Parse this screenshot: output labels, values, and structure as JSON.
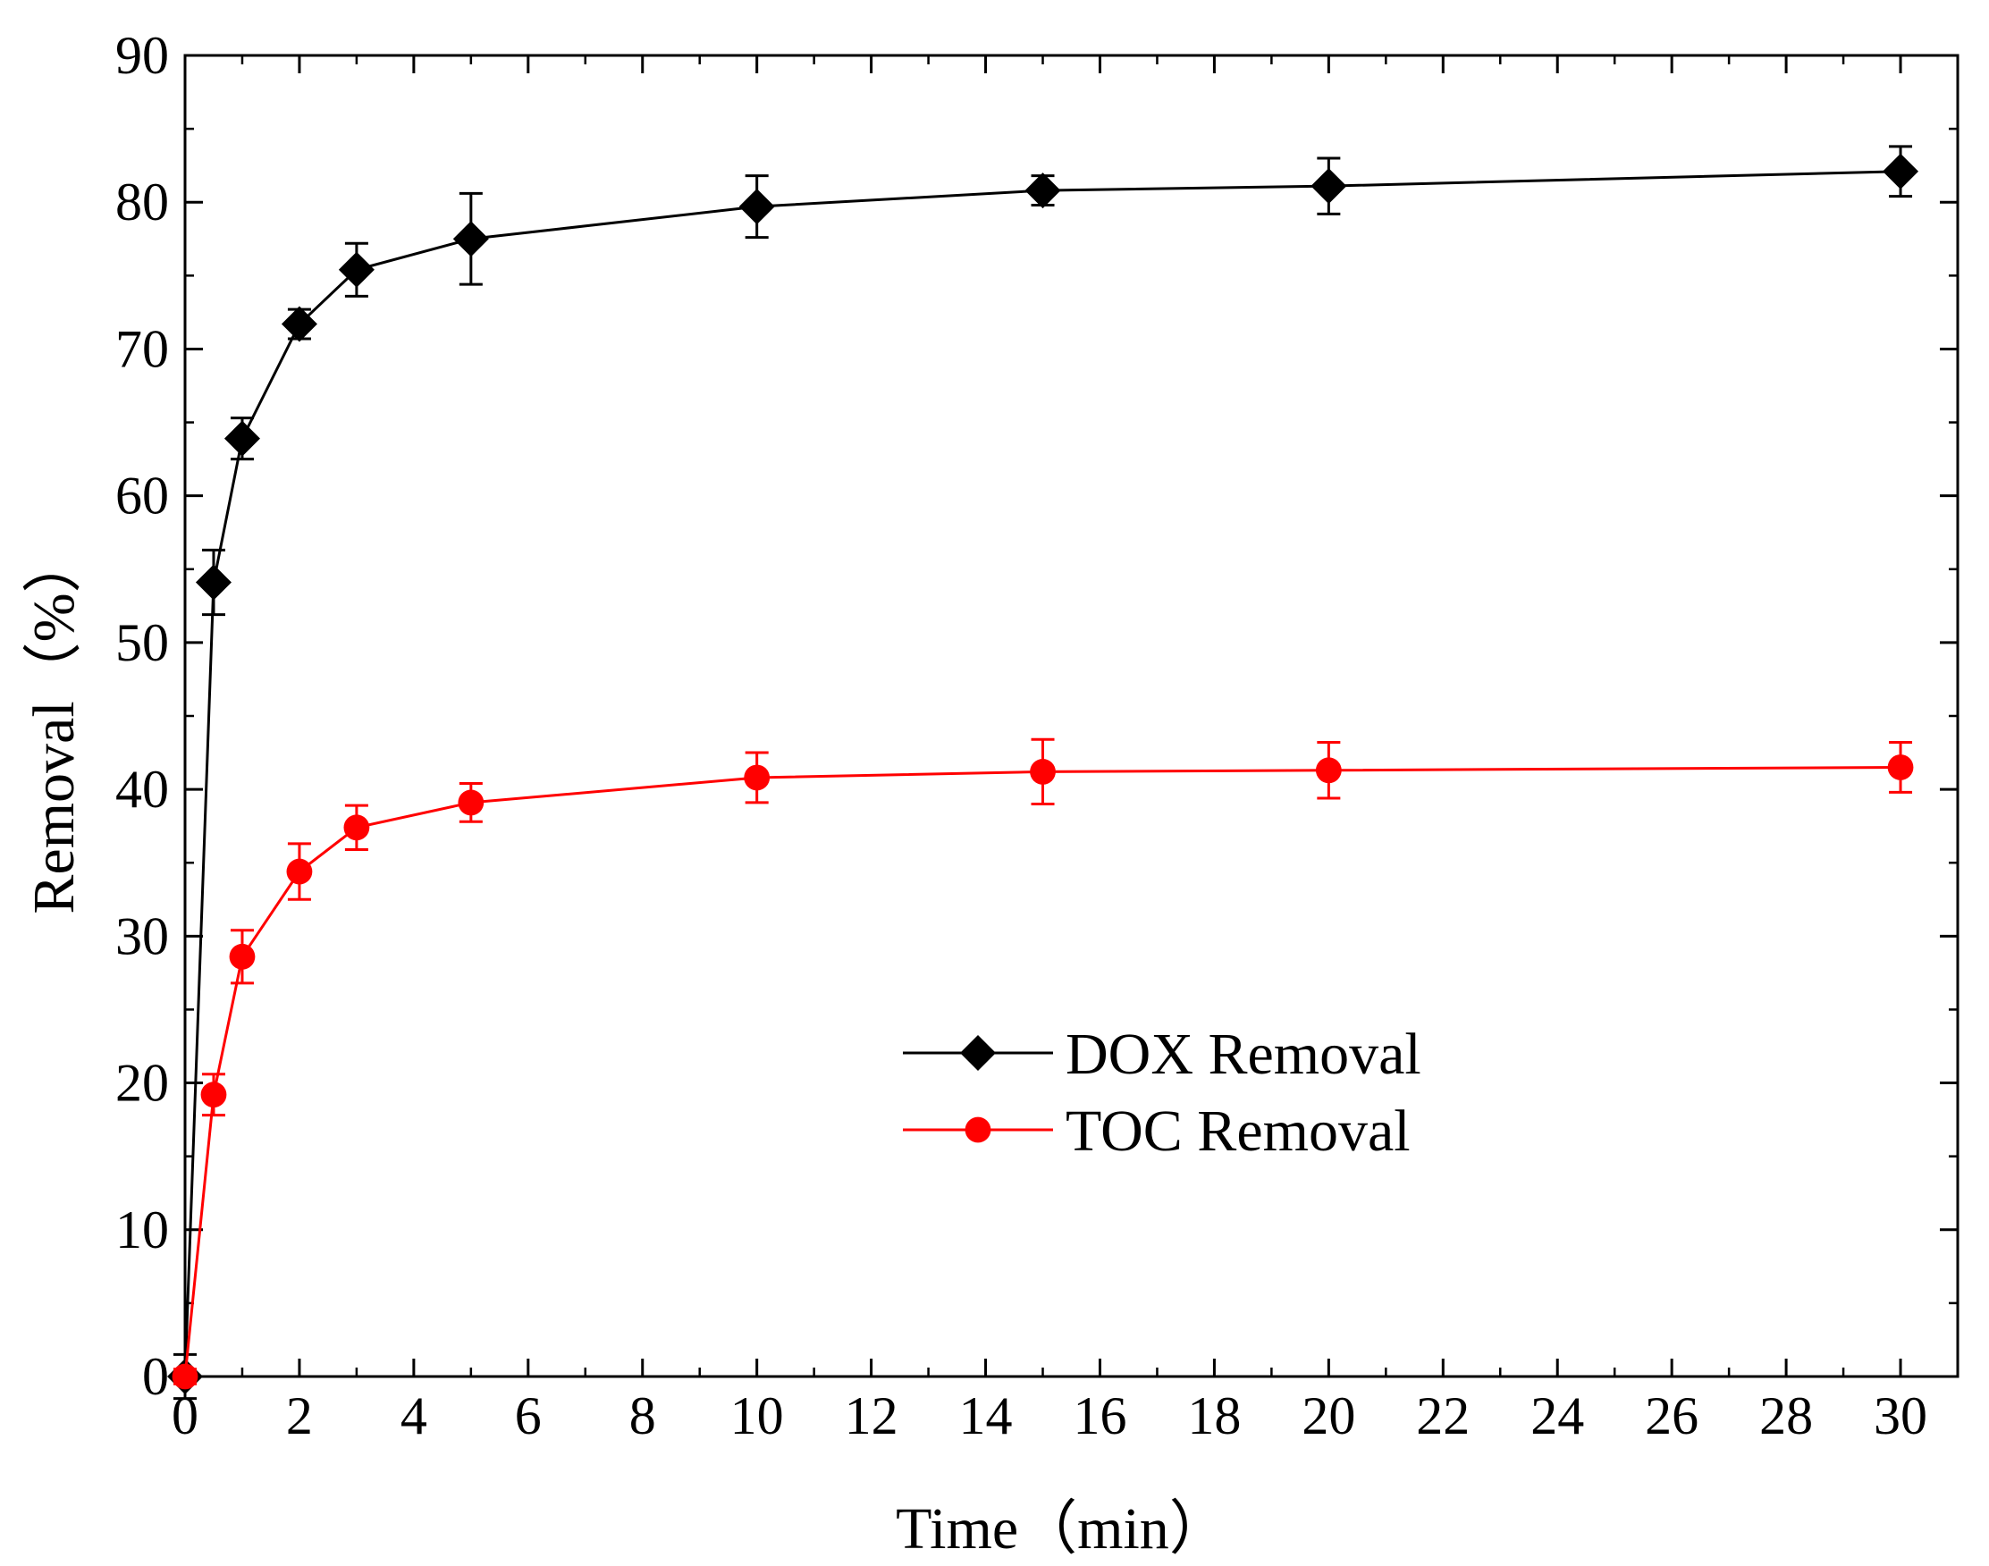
{
  "chart_data": {
    "type": "line",
    "xlabel": "Time（min）",
    "ylabel": "Removal（%）",
    "xlim": [
      0,
      31
    ],
    "ylim": [
      0,
      90
    ],
    "x_ticks": [
      0,
      2,
      4,
      6,
      8,
      10,
      12,
      14,
      16,
      18,
      20,
      22,
      24,
      26,
      28,
      30
    ],
    "y_ticks": [
      0,
      10,
      20,
      30,
      40,
      50,
      60,
      70,
      80,
      90
    ],
    "x_tick_labels": [
      "0",
      "2",
      "4",
      "6",
      "8",
      "10",
      "12",
      "14",
      "16",
      "18",
      "20",
      "22",
      "24",
      "26",
      "28",
      "30"
    ],
    "y_tick_labels": [
      "0",
      "10",
      "20",
      "30",
      "40",
      "50",
      "60",
      "70",
      "80",
      "90"
    ],
    "grid": false,
    "legend_position": "center-right",
    "series": [
      {
        "name": "DOX Removal",
        "color": "#000000",
        "marker": "diamond",
        "x": [
          0,
          0.5,
          1,
          2,
          3,
          5,
          10,
          15,
          20,
          30
        ],
        "y": [
          0,
          54.1,
          63.9,
          71.7,
          75.4,
          77.5,
          79.7,
          80.8,
          81.1,
          82.1
        ],
        "error": [
          1.5,
          2.2,
          1.4,
          1.0,
          1.8,
          3.1,
          2.1,
          1.0,
          1.9,
          1.7
        ]
      },
      {
        "name": "TOC Removal",
        "color": "#ff0000",
        "marker": "circle",
        "x": [
          0,
          0.5,
          1,
          2,
          3,
          5,
          10,
          15,
          20,
          30
        ],
        "y": [
          0,
          19.2,
          28.6,
          34.4,
          37.4,
          39.1,
          40.8,
          41.2,
          41.3,
          41.5
        ],
        "error": [
          0.5,
          1.4,
          1.8,
          1.9,
          1.5,
          1.3,
          1.7,
          2.2,
          1.9,
          1.7
        ]
      }
    ]
  }
}
